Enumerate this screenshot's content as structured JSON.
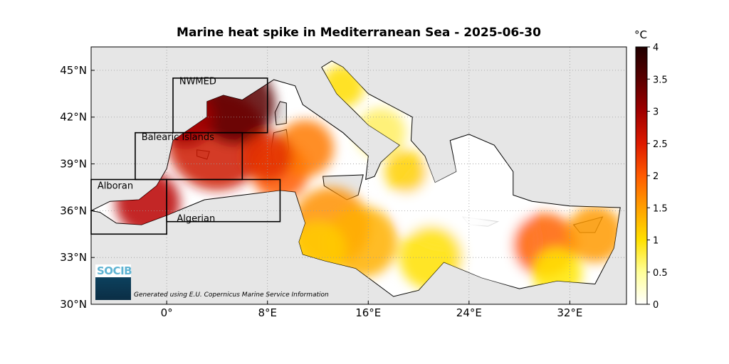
{
  "title": "Marine heat spike in Mediterranean Sea - 2025-06-30",
  "map": {
    "lat_ticks": [
      "45°N",
      "42°N",
      "39°N",
      "36°N",
      "33°N",
      "30°N"
    ],
    "lon_ticks": [
      "0°",
      "8°E",
      "16°E",
      "24°E",
      "32°E"
    ],
    "lat_range": [
      30,
      46.5
    ],
    "lon_range": [
      -6,
      36.5
    ],
    "regions": [
      {
        "name": "NWMED",
        "lon": [
          0.5,
          8
        ],
        "lat": [
          41,
          44.5
        ]
      },
      {
        "name": "Balearic Islands",
        "lon": [
          -2.5,
          6
        ],
        "lat": [
          38,
          41
        ]
      },
      {
        "name": "Alboran",
        "lon": [
          -6,
          0
        ],
        "lat": [
          34.5,
          38
        ]
      },
      {
        "name": "Algerian",
        "lon": [
          0,
          9
        ],
        "lat": [
          35.3,
          38
        ]
      }
    ]
  },
  "colorbar": {
    "unit": "°C",
    "ticks": [
      "0",
      "0.5",
      "1",
      "1.5",
      "2",
      "2.5",
      "3",
      "3.5",
      "4"
    ],
    "range": [
      0,
      4
    ],
    "colors": [
      "#ffffff",
      "#ffff99",
      "#ffe000",
      "#ffa000",
      "#ff5a00",
      "#dd1a00",
      "#a00000",
      "#5a0000",
      "#200000"
    ]
  },
  "credit": "Generated using E.U. Copernicus Marine Service Information",
  "logo_text": "SOCIB",
  "colors": {
    "land": "#e6e6e6",
    "sea_bg": "#ffffff"
  }
}
